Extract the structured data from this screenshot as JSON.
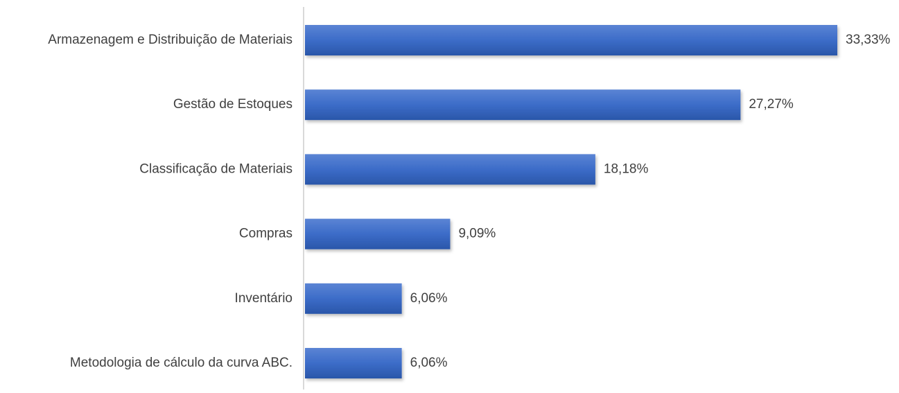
{
  "chart_data": {
    "type": "bar",
    "orientation": "horizontal",
    "categories": [
      "Armazenagem e Distribuição de Materiais",
      "Gestão de Estoques",
      "Classificação de Materiais",
      "Compras",
      "Inventário",
      "Metodologia de cálculo da curva ABC."
    ],
    "values": [
      33.33,
      27.27,
      18.18,
      9.09,
      6.06,
      6.06
    ],
    "value_labels": [
      "33,33%",
      "27,27%",
      "18,18%",
      "9,09%",
      "6,06%",
      "6,06%"
    ],
    "title": "",
    "xlabel": "",
    "ylabel": "",
    "xlim": [
      0,
      33.33
    ],
    "grid": false,
    "legend": "none",
    "colors": {
      "bar_top": "#5b84d4",
      "bar_mid": "#3c6cc8",
      "bar_bottom": "#2a56a9",
      "axis": "#d9d9d9",
      "text": "#404040"
    }
  }
}
